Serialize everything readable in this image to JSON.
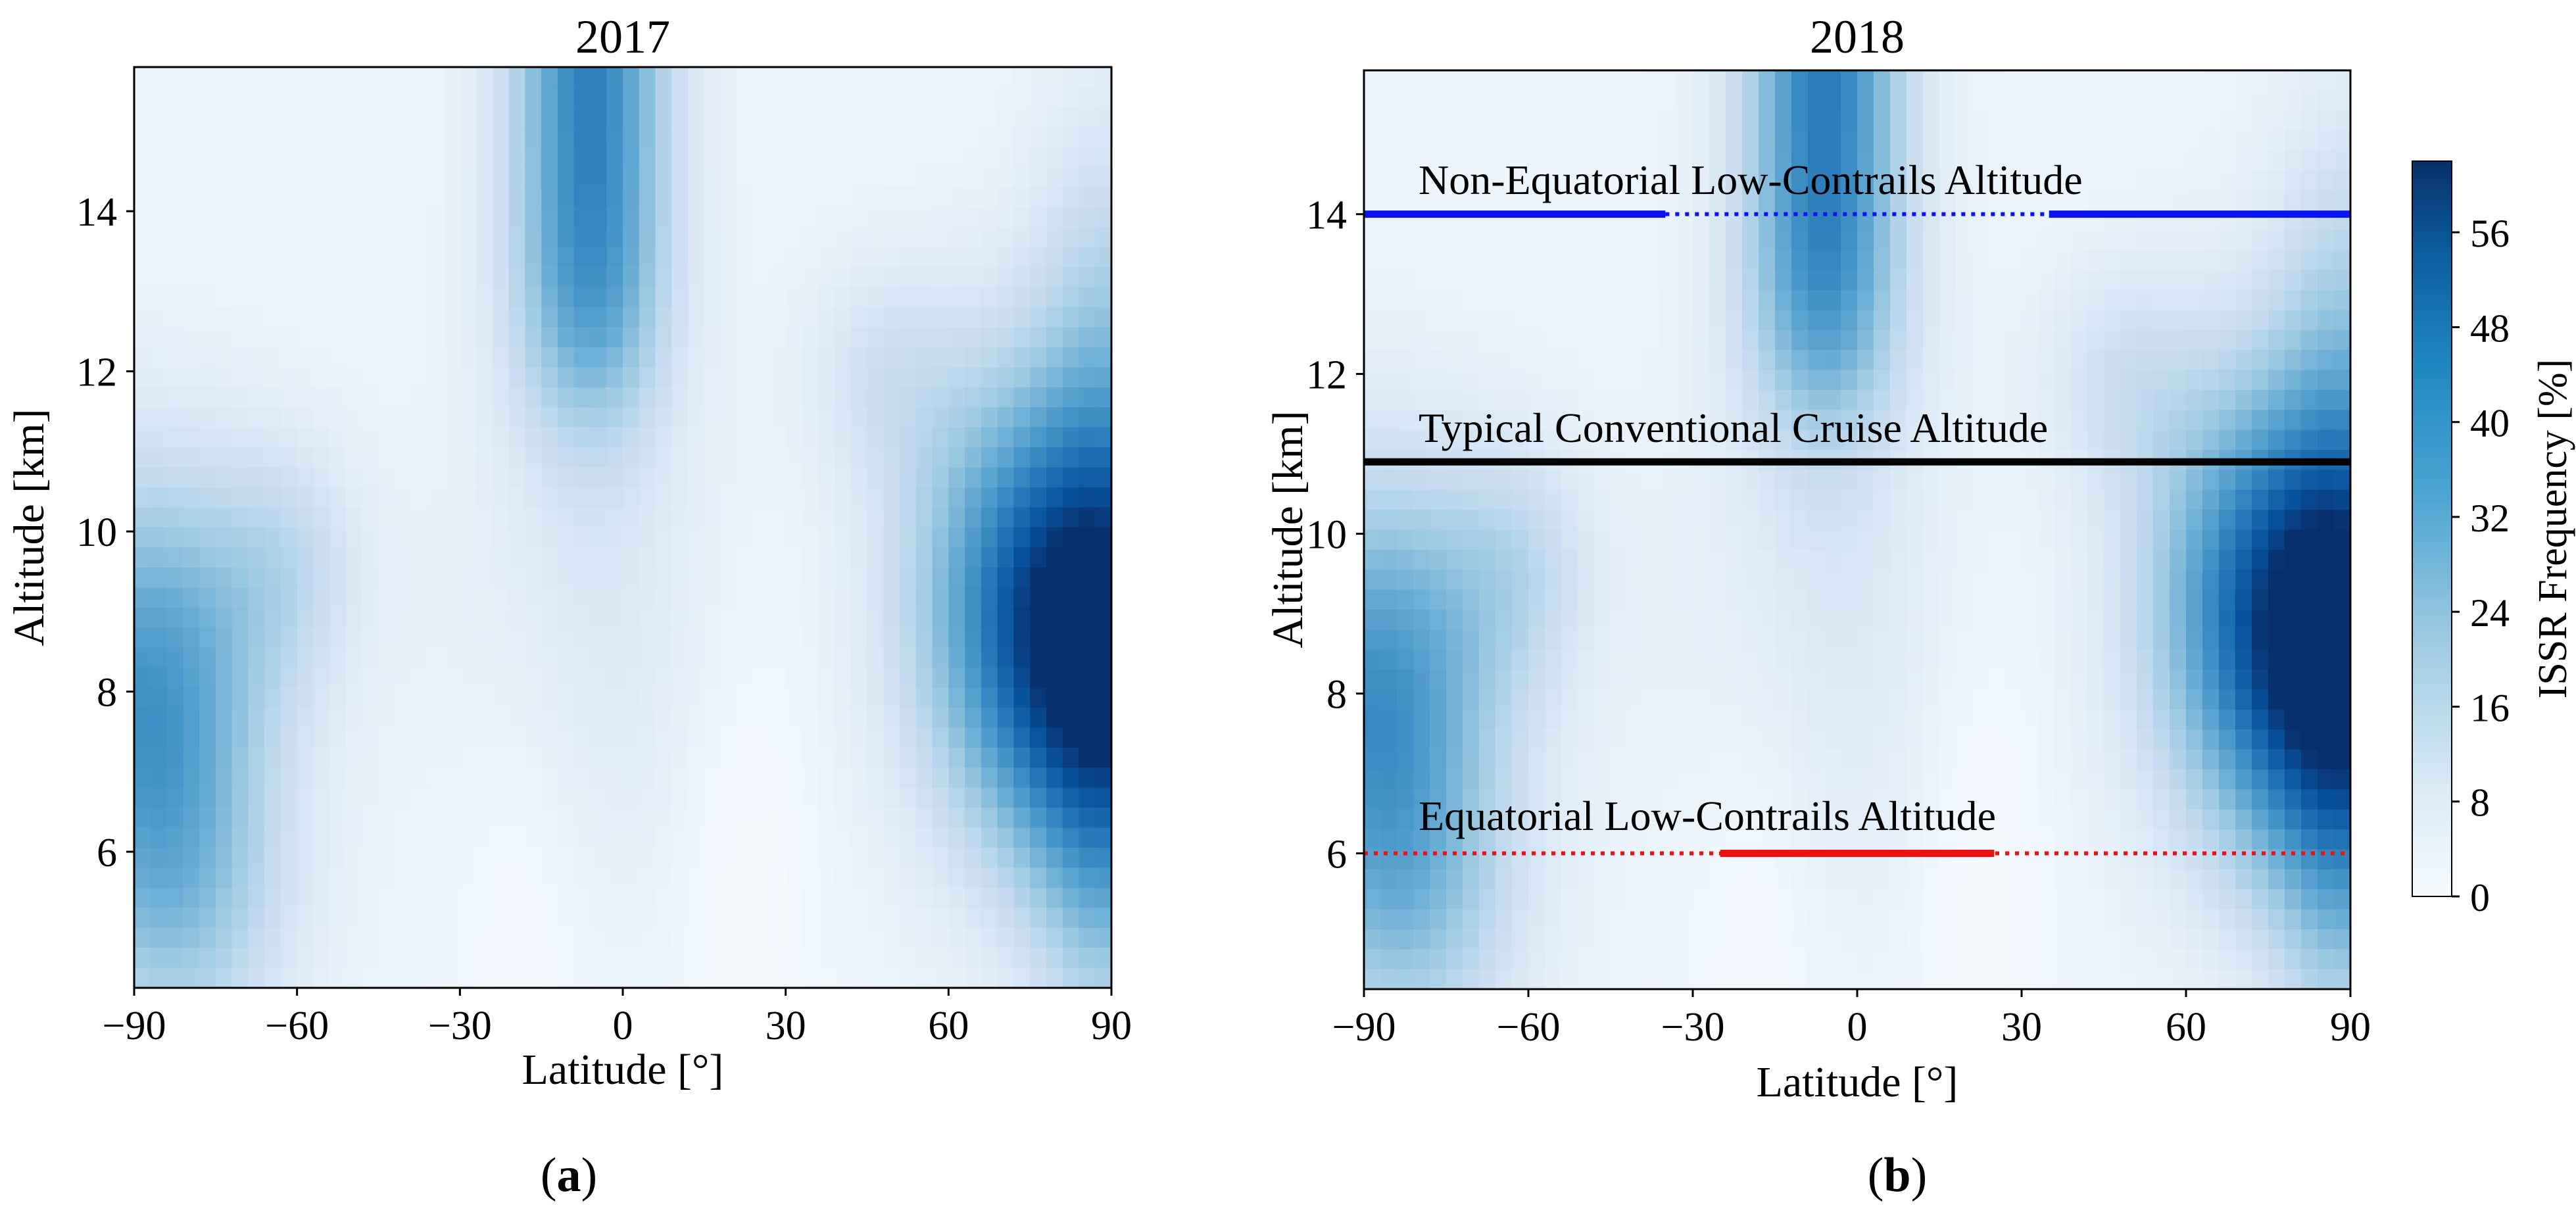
{
  "chart_data": [
    {
      "type": "heatmap",
      "panel_label": "a",
      "title": "2017",
      "xlabel": "Latitude [°]",
      "ylabel": "Altitude [km]",
      "xlim": [
        -90,
        90
      ],
      "ylim": [
        4.3,
        15.8
      ],
      "x_ticks": [
        -90,
        -60,
        -30,
        0,
        30,
        60,
        90
      ],
      "x_tick_labels": [
        "−90",
        "−60",
        "−30",
        "0",
        "30",
        "60",
        "90"
      ],
      "y_ticks": [
        6,
        8,
        10,
        12,
        14
      ],
      "y_tick_labels": [
        "6",
        "8",
        "10",
        "12",
        "14"
      ],
      "colormap": "Blues",
      "value_range": [
        0,
        62
      ],
      "features": [
        {
          "lat": -6,
          "alt": 14.5,
          "peak": 44,
          "region": "equatorial upper-troposphere maximum"
        },
        {
          "lat": -84,
          "alt": 8.1,
          "peak": 36,
          "region": "southern high-latitude band"
        },
        {
          "lat": 88,
          "alt": 8.3,
          "peak": 58,
          "region": "northern polar maximum"
        }
      ]
    },
    {
      "type": "heatmap",
      "panel_label": "b",
      "title": "2018",
      "xlabel": "Latitude [°]",
      "ylabel": "Altitude [km]",
      "xlim": [
        -90,
        90
      ],
      "ylim": [
        4.3,
        15.8
      ],
      "x_ticks": [
        -90,
        -60,
        -30,
        0,
        30,
        60,
        90
      ],
      "x_tick_labels": [
        "−90",
        "−60",
        "−30",
        "0",
        "30",
        "60",
        "90"
      ],
      "y_ticks": [
        6,
        8,
        10,
        12,
        14
      ],
      "y_tick_labels": [
        "6",
        "8",
        "10",
        "12",
        "14"
      ],
      "colormap": "Blues",
      "value_range": [
        0,
        62
      ],
      "colorbar": {
        "label": "ISSR Frequency [%]",
        "ticks": [
          0,
          8,
          16,
          24,
          32,
          40,
          48,
          56
        ],
        "tick_labels": [
          "0",
          "8",
          "16",
          "24",
          "32",
          "40",
          "48",
          "56"
        ],
        "max": 62
      },
      "features": [
        {
          "lat": -6,
          "alt": 14.5,
          "peak": 42,
          "region": "equatorial upper-troposphere maximum"
        },
        {
          "lat": -84,
          "alt": 8.1,
          "peak": 36,
          "region": "southern high-latitude band"
        },
        {
          "lat": 88,
          "alt": 8.4,
          "peak": 60,
          "region": "northern polar maximum"
        }
      ],
      "annotations": [
        {
          "text": "Non-Equatorial Low-Contrails Altitude",
          "altitude": 14,
          "color": "#0a14f0",
          "solid_ranges": [
            [
              -90,
              -35
            ],
            [
              35,
              90
            ]
          ],
          "dotted_range": [
            -35,
            35
          ]
        },
        {
          "text": "Typical Conventional Cruise Altitude",
          "altitude": 10.9,
          "color": "#000000",
          "solid_ranges": [
            [
              -90,
              90
            ]
          ],
          "dotted_range": null
        },
        {
          "text": "Equatorial Low-Contrails Altitude",
          "altitude": 6,
          "color": "#ee1111",
          "solid_ranges": [
            [
              -25,
              25
            ]
          ],
          "dotted_range": [
            -90,
            90
          ]
        }
      ]
    }
  ]
}
